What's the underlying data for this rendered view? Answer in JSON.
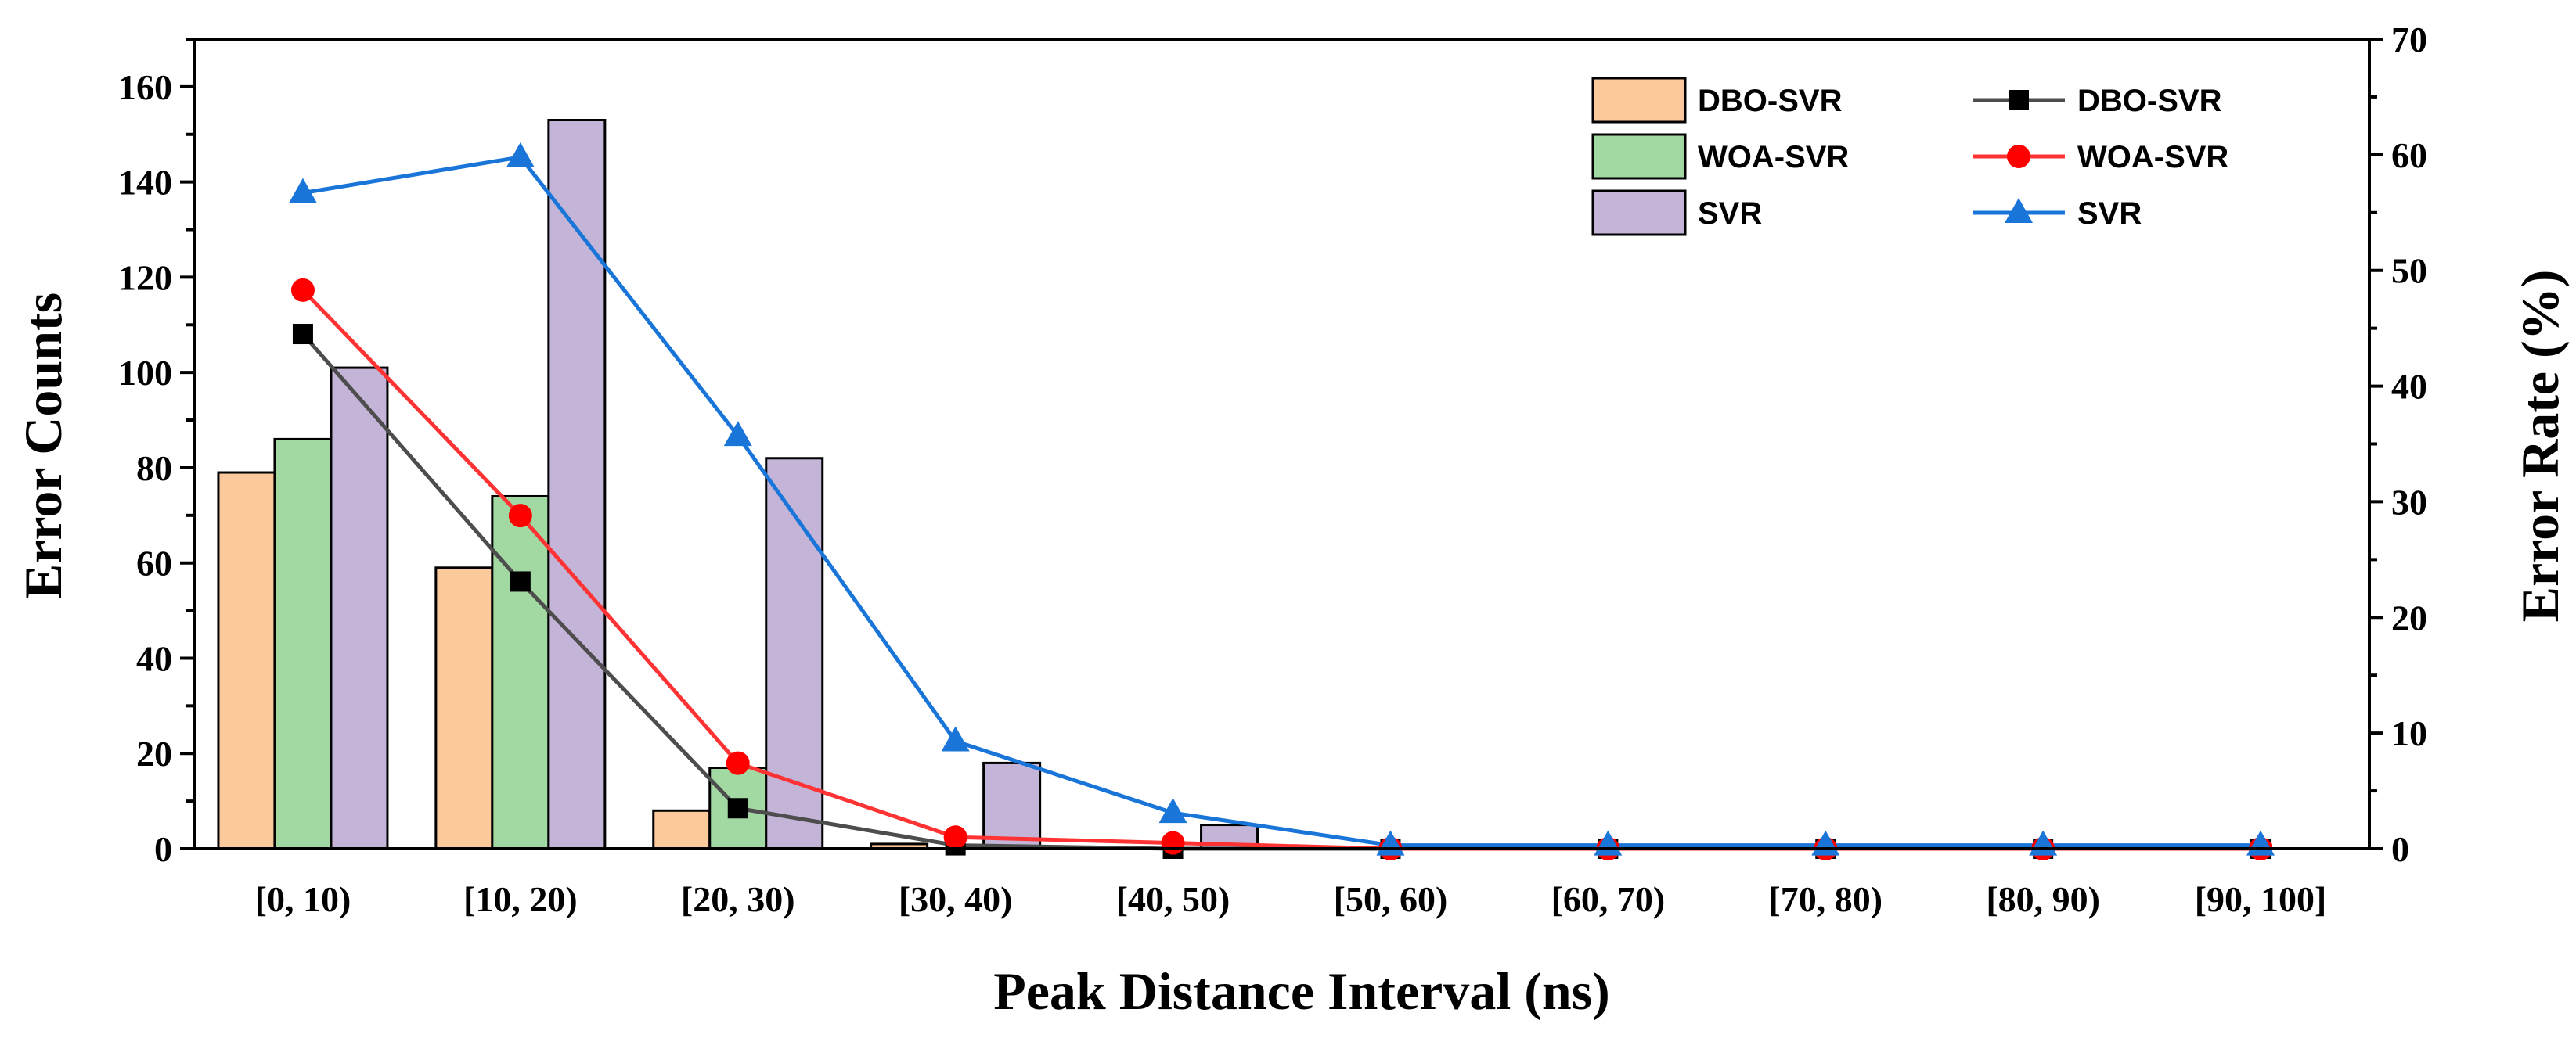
{
  "chart_data": {
    "type": "bar",
    "categories": [
      "[0, 10)",
      "[10, 20)",
      "[20, 30)",
      "[30, 40)",
      "[40, 50)",
      "[50, 60)",
      "[60, 70)",
      "[70, 80)",
      "[80, 90)",
      "[90, 100]"
    ],
    "bar_series": [
      {
        "name": "DBO-SVR",
        "color": "#FBC99B",
        "values": [
          79,
          59,
          8,
          1,
          0,
          0,
          0,
          0,
          0,
          0
        ]
      },
      {
        "name": "WOA-SVR",
        "color": "#A2D9A2",
        "values": [
          86,
          74,
          17,
          0,
          0,
          0,
          0,
          0,
          0,
          0
        ]
      },
      {
        "name": "SVR",
        "color": "#C3B4D8",
        "values": [
          101,
          153,
          82,
          18,
          5,
          0,
          0,
          0,
          0,
          0
        ]
      }
    ],
    "line_series": [
      {
        "name": "DBO-SVR",
        "color": "#4d4d4d",
        "marker_color": "#000000",
        "marker": "square",
        "values": [
          44.5,
          23.1,
          3.5,
          0.3,
          0.0,
          0.0,
          0.0,
          0.0,
          0.0,
          0.0
        ]
      },
      {
        "name": "WOA-SVR",
        "color": "#ff3333",
        "marker_color": "#ff0000",
        "marker": "circle",
        "values": [
          48.3,
          28.8,
          7.4,
          1.0,
          0.5,
          0.0,
          0.0,
          0.0,
          0.0,
          0.0
        ]
      },
      {
        "name": "SVR",
        "color": "#1a75d9",
        "marker_color": "#1a75d9",
        "marker": "triangle",
        "values": [
          56.7,
          59.8,
          35.7,
          9.3,
          3.1,
          0.3,
          0.3,
          0.3,
          0.3,
          0.3
        ]
      }
    ],
    "xlabel": "Peak Distance Interval (ns)",
    "ylabel": "Error Counts",
    "y2label": "Error Rate (%)",
    "ylim": [
      0,
      170
    ],
    "y2lim": [
      0,
      70
    ],
    "yticks": [
      0,
      20,
      40,
      60,
      80,
      100,
      120,
      140,
      160
    ],
    "y2ticks": [
      0,
      10,
      20,
      30,
      40,
      50,
      60,
      70
    ],
    "legend_position": "top-right",
    "grid": false
  }
}
